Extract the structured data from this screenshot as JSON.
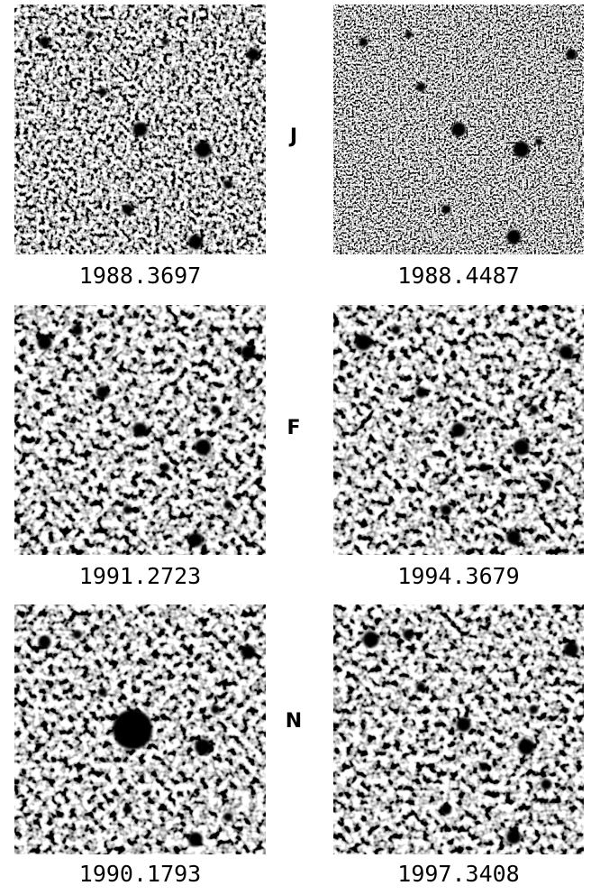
{
  "rows": [
    {
      "band": "J",
      "epochs": [
        "1988.3697",
        "1988.4487"
      ]
    },
    {
      "band": "F",
      "epochs": [
        "1991.2723",
        "1994.3679"
      ]
    },
    {
      "band": "N",
      "epochs": [
        "1990.1793",
        "1997.3408"
      ]
    }
  ]
}
